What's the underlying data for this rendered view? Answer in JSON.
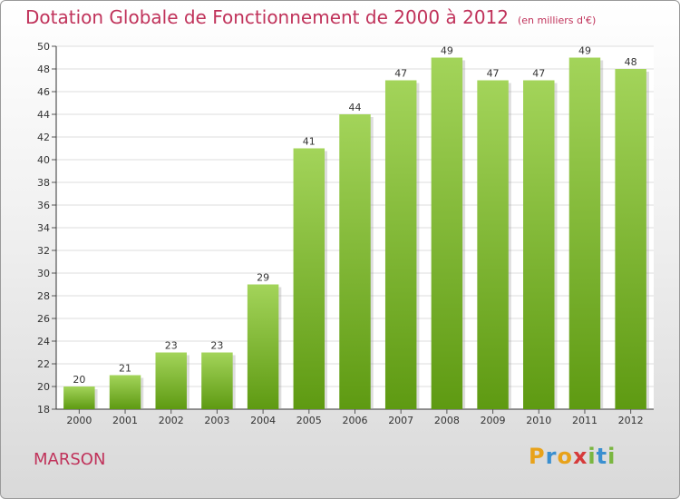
{
  "header": {
    "title": "Dotation Globale de Fonctionnement de 2000 à 2012",
    "unit": "(en milliers d'€)"
  },
  "footer": {
    "commune": "MARSON",
    "logo_text": "Proxiti",
    "logo_letters": [
      "P",
      "r",
      "o",
      "x",
      "i",
      "t",
      "i"
    ]
  },
  "colors": {
    "title": "#c0325a",
    "bar_top": "#a3d45a",
    "bar_bottom": "#5e9a12"
  },
  "chart_data": {
    "type": "bar",
    "title": "Dotation Globale de Fonctionnement de 2000 à 2012",
    "categories": [
      "2000",
      "2001",
      "2002",
      "2003",
      "2004",
      "2005",
      "2006",
      "2007",
      "2008",
      "2009",
      "2010",
      "2011",
      "2012"
    ],
    "values": [
      20,
      21,
      23,
      23,
      29,
      41,
      44,
      47,
      49,
      47,
      47,
      49,
      48
    ],
    "ylim": [
      18,
      50
    ],
    "yticks": [
      18,
      20,
      22,
      24,
      26,
      28,
      30,
      32,
      34,
      36,
      38,
      40,
      42,
      44,
      46,
      48,
      50
    ],
    "grid": true,
    "data_labels": true
  }
}
